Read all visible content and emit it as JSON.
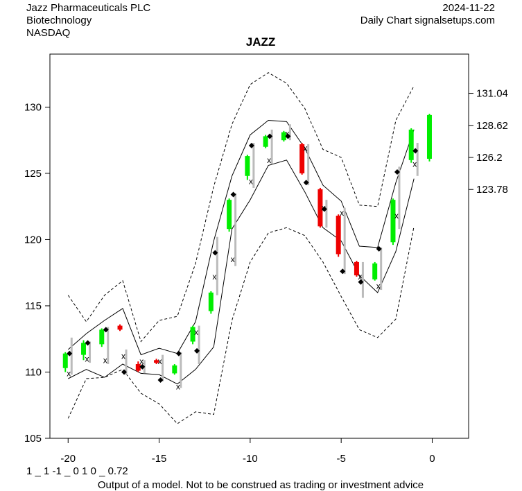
{
  "header": {
    "company": "Jazz Pharmaceuticals PLC",
    "sector": "Biotechnology",
    "exchange": "NASDAQ",
    "date": "2024-11-22",
    "source": "Daily Chart signalsetups.com"
  },
  "footer": {
    "model_code": "1 _ 1 -1 _ 0 1 0 _ 0.72",
    "disclaimer": "Output of a model. Not to be construed as trading or investment advice"
  },
  "colors": {
    "up": "#00ee00",
    "down": "#ee0000",
    "wick": "#bbbbbb",
    "band": "#000000"
  },
  "chart_data": {
    "type": "candlestick",
    "title": "JAZZ",
    "xlim": [
      -21,
      2
    ],
    "ylim": [
      105,
      134
    ],
    "x_ticks": [
      -20,
      -15,
      -10,
      -5,
      0
    ],
    "y_ticks_left": [
      105,
      110,
      115,
      120,
      125,
      130
    ],
    "y_ticks_right": [
      131.04,
      128.62,
      126.2,
      123.78
    ],
    "candles": [
      {
        "x": -20,
        "o": 110.3,
        "c": 111.4,
        "h": 111.5,
        "l": 110.0,
        "dir": "up"
      },
      {
        "x": -19,
        "o": 111.3,
        "c": 112.2,
        "h": 112.4,
        "l": 110.9,
        "dir": "up"
      },
      {
        "x": -18,
        "o": 112.1,
        "c": 113.2,
        "h": 113.3,
        "l": 111.9,
        "dir": "up"
      },
      {
        "x": -17,
        "o": 113.5,
        "c": 113.2,
        "h": 113.6,
        "l": 113.1,
        "dir": "down"
      },
      {
        "x": -16,
        "o": 110.6,
        "c": 110.1,
        "h": 110.8,
        "l": 110.0,
        "dir": "down"
      },
      {
        "x": -15,
        "o": 110.9,
        "c": 110.7,
        "h": 111.0,
        "l": 110.6,
        "dir": "down"
      },
      {
        "x": -14,
        "o": 109.9,
        "c": 110.5,
        "h": 110.6,
        "l": 109.8,
        "dir": "up"
      },
      {
        "x": -13,
        "o": 112.3,
        "c": 113.4,
        "h": 113.5,
        "l": 112.1,
        "dir": "up"
      },
      {
        "x": -12,
        "o": 114.6,
        "c": 116.0,
        "h": 116.1,
        "l": 114.4,
        "dir": "up"
      },
      {
        "x": -11,
        "o": 120.8,
        "c": 123.0,
        "h": 123.1,
        "l": 120.6,
        "dir": "up"
      },
      {
        "x": -10,
        "o": 124.8,
        "c": 126.3,
        "h": 126.4,
        "l": 124.5,
        "dir": "up"
      },
      {
        "x": -9,
        "o": 127.0,
        "c": 127.8,
        "h": 127.9,
        "l": 126.9,
        "dir": "up"
      },
      {
        "x": -8,
        "o": 127.5,
        "c": 128.1,
        "h": 128.2,
        "l": 127.4,
        "dir": "up"
      },
      {
        "x": -7,
        "o": 127.2,
        "c": 125.0,
        "h": 127.3,
        "l": 124.9,
        "dir": "down"
      },
      {
        "x": -6,
        "o": 123.8,
        "c": 121.0,
        "h": 123.9,
        "l": 120.9,
        "dir": "down"
      },
      {
        "x": -5,
        "o": 121.8,
        "c": 118.9,
        "h": 121.9,
        "l": 118.7,
        "dir": "down"
      },
      {
        "x": -4,
        "o": 118.3,
        "c": 117.3,
        "h": 118.4,
        "l": 117.2,
        "dir": "down"
      },
      {
        "x": -3,
        "o": 117.0,
        "c": 118.2,
        "h": 118.3,
        "l": 116.9,
        "dir": "up"
      },
      {
        "x": -2,
        "o": 119.8,
        "c": 123.0,
        "h": 123.1,
        "l": 119.6,
        "dir": "up"
      },
      {
        "x": -1,
        "o": 126.0,
        "c": 128.3,
        "h": 128.4,
        "l": 125.8,
        "dir": "up"
      },
      {
        "x": 0,
        "o": 126.1,
        "c": 129.4,
        "h": 129.5,
        "l": 125.9,
        "dir": "up"
      }
    ],
    "range_bars": [
      {
        "x": -20,
        "hi": 112.6,
        "lo": 109.8,
        "xm": 109.9,
        "dm": 111.4
      },
      {
        "x": -19,
        "hi": 112.3,
        "lo": 110.7,
        "xm": 111.0,
        "dm": 112.2
      },
      {
        "x": -18,
        "hi": 113.4,
        "lo": 110.6,
        "xm": 110.9,
        "dm": 113.2
      },
      {
        "x": -17,
        "hi": 111.7,
        "lo": 109.8,
        "xm": 111.2,
        "dm": 110.0
      },
      {
        "x": -16,
        "hi": 110.9,
        "lo": 109.9,
        "xm": 110.8,
        "dm": 110.4
      },
      {
        "x": -15,
        "hi": 111.3,
        "lo": 109.3,
        "xm": 110.8,
        "dm": 109.4
      },
      {
        "x": -14,
        "hi": 111.5,
        "lo": 108.8,
        "xm": 108.9,
        "dm": 111.4
      },
      {
        "x": -13,
        "hi": 113.5,
        "lo": 110.6,
        "xm": 113.0,
        "dm": 111.6
      },
      {
        "x": -12,
        "hi": 120.2,
        "lo": 115.8,
        "xm": 117.2,
        "dm": 119.0
      },
      {
        "x": -11,
        "hi": 123.5,
        "lo": 118.0,
        "xm": 118.5,
        "dm": 123.4
      },
      {
        "x": -10,
        "hi": 127.3,
        "lo": 123.9,
        "xm": 124.4,
        "dm": 127.1
      },
      {
        "x": -9,
        "hi": 128.3,
        "lo": 125.7,
        "xm": 126.0,
        "dm": 127.8
      },
      {
        "x": -8,
        "hi": 128.7,
        "lo": 127.5,
        "xm": 128.0,
        "dm": 127.8
      },
      {
        "x": -7,
        "hi": 127.2,
        "lo": 124.1,
        "xm": 126.9,
        "dm": 124.3
      },
      {
        "x": -6,
        "hi": 123.0,
        "lo": 120.9,
        "xm": 122.4,
        "dm": 122.3
      },
      {
        "x": -5,
        "hi": 122.4,
        "lo": 117.4,
        "xm": 122.0,
        "dm": 117.6
      },
      {
        "x": -4,
        "hi": 118.3,
        "lo": 115.6,
        "xm": 117.2,
        "dm": 116.8
      },
      {
        "x": -3,
        "hi": 119.4,
        "lo": 116.2,
        "xm": 116.5,
        "dm": 119.3
      },
      {
        "x": -2,
        "hi": 125.5,
        "lo": 120.8,
        "xm": 121.8,
        "dm": 125.1
      },
      {
        "x": -1,
        "hi": 127.3,
        "lo": 124.8,
        "xm": 125.7,
        "dm": 126.7
      }
    ],
    "bands": {
      "x": [
        -20,
        -19,
        -18,
        -17,
        -16,
        -15,
        -14,
        -13,
        -12,
        -11,
        -10,
        -9,
        -8,
        -7,
        -6,
        -5,
        -4,
        -3,
        -2,
        -1
      ],
      "outer_upper": [
        115.8,
        113.8,
        115.8,
        116.9,
        112.3,
        113.9,
        114.2,
        118.2,
        124.0,
        128.7,
        131.7,
        132.6,
        131.8,
        129.9,
        126.8,
        126.2,
        122.6,
        122.5,
        129.0,
        131.6
      ],
      "inner_upper": [
        111.7,
        112.9,
        113.9,
        114.8,
        111.3,
        111.8,
        111.4,
        113.8,
        119.9,
        124.8,
        127.9,
        129.0,
        128.9,
        126.9,
        124.1,
        122.9,
        119.5,
        119.4,
        124.3,
        128.3
      ],
      "inner_lower": [
        109.5,
        110.2,
        109.6,
        110.6,
        109.9,
        109.8,
        109.1,
        110.2,
        111.9,
        120.8,
        123.0,
        125.6,
        126.0,
        123.6,
        120.9,
        119.9,
        117.3,
        116.0,
        119.1,
        124.6
      ],
      "outer_lower": [
        106.5,
        109.5,
        109.6,
        110.2,
        108.4,
        107.6,
        106.1,
        107.0,
        106.8,
        113.9,
        118.3,
        120.5,
        120.9,
        120.3,
        118.3,
        115.7,
        113.2,
        112.6,
        114.0,
        121.0
      ]
    }
  }
}
